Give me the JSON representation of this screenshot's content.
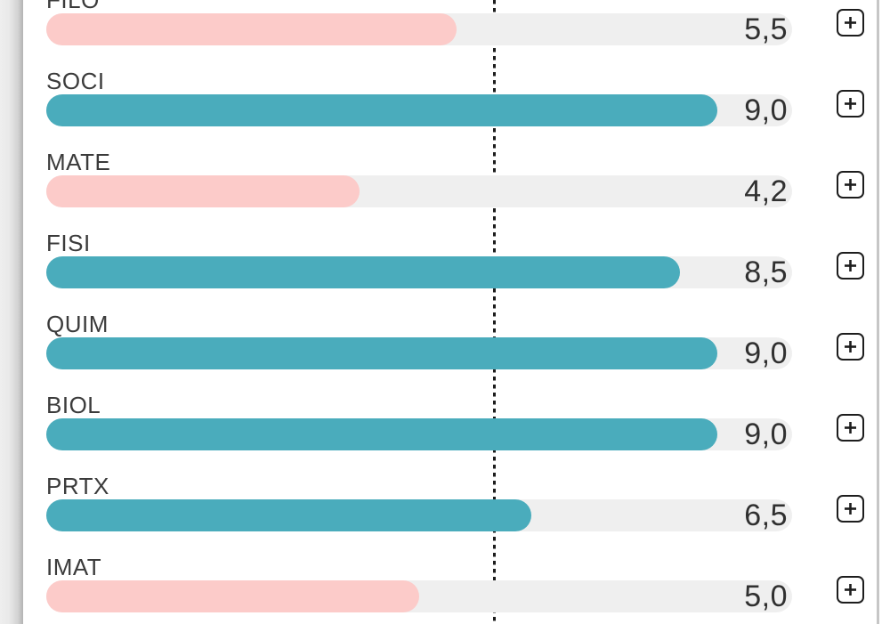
{
  "ui": {
    "scale_max": 10,
    "threshold_value": 6,
    "colors": {
      "pass_bar": "#4aacbc",
      "fail_bar": "#fccbc9",
      "track": "#efefef",
      "label_text": "#3b3b3b",
      "value_text": "#303030",
      "threshold_line": "#1d1d1d",
      "button_border": "#1d1d1d",
      "scrollbar_line": "#c6c6c6"
    },
    "add_button": {
      "icon": "plus"
    }
  },
  "rows": [
    {
      "code": "FILO",
      "value_label": "5,5",
      "value_num": 5.5,
      "status": "fail"
    },
    {
      "code": "SOCI",
      "value_label": "9,0",
      "value_num": 9.0,
      "status": "pass"
    },
    {
      "code": "MATE",
      "value_label": "4,2",
      "value_num": 4.2,
      "status": "fail"
    },
    {
      "code": "FISI",
      "value_label": "8,5",
      "value_num": 8.5,
      "status": "pass"
    },
    {
      "code": "QUIM",
      "value_label": "9,0",
      "value_num": 9.0,
      "status": "pass"
    },
    {
      "code": "BIOL",
      "value_label": "9,0",
      "value_num": 9.0,
      "status": "pass"
    },
    {
      "code": "PRTX",
      "value_label": "6,5",
      "value_num": 6.5,
      "status": "pass"
    },
    {
      "code": "IMAT",
      "value_label": "5,0",
      "value_num": 5.0,
      "status": "fail"
    }
  ],
  "chart_data": {
    "type": "bar",
    "orientation": "horizontal",
    "categories": [
      "FILO",
      "SOCI",
      "MATE",
      "FISI",
      "QUIM",
      "BIOL",
      "PRTX",
      "IMAT"
    ],
    "values": [
      5.5,
      9.0,
      4.2,
      8.5,
      9.0,
      9.0,
      6.5,
      5.0
    ],
    "value_labels": [
      "5,5",
      "9,0",
      "4,2",
      "8,5",
      "9,0",
      "9,0",
      "6,5",
      "5,0"
    ],
    "xlim": [
      0,
      10
    ],
    "threshold": 6,
    "color_rule": "value >= 6 teal (#4aacbc), value < 6 pink (#fccbc9)"
  }
}
